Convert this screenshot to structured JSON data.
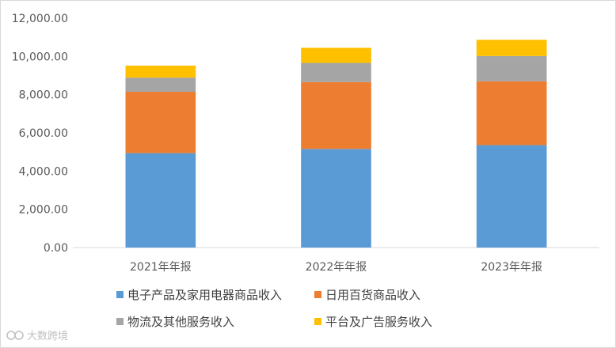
{
  "chart_data": {
    "type": "bar",
    "stacked": true,
    "categories": [
      "2021年年报",
      "2022年年报",
      "2023年年报"
    ],
    "series": [
      {
        "name": "电子产品及家用电器商品收入",
        "color": "#5b9bd5",
        "values": [
          4940,
          5160,
          5360
        ]
      },
      {
        "name": "日用百货商品收入",
        "color": "#ed7d31",
        "values": [
          3210,
          3500,
          3340
        ]
      },
      {
        "name": "物流及其他服务收入",
        "color": "#a5a5a5",
        "values": [
          740,
          1000,
          1320
        ]
      },
      {
        "name": "平台及广告服务收入",
        "color": "#ffc000",
        "values": [
          630,
          790,
          850
        ]
      }
    ],
    "ylim": [
      0,
      12000
    ],
    "yticks": [
      "0.00",
      "2,000.00",
      "4,000.00",
      "6,000.00",
      "8,000.00",
      "10,000.00",
      "12,000.00"
    ],
    "grid": false,
    "legend_position": "bottom"
  },
  "watermark": "大数跨境"
}
